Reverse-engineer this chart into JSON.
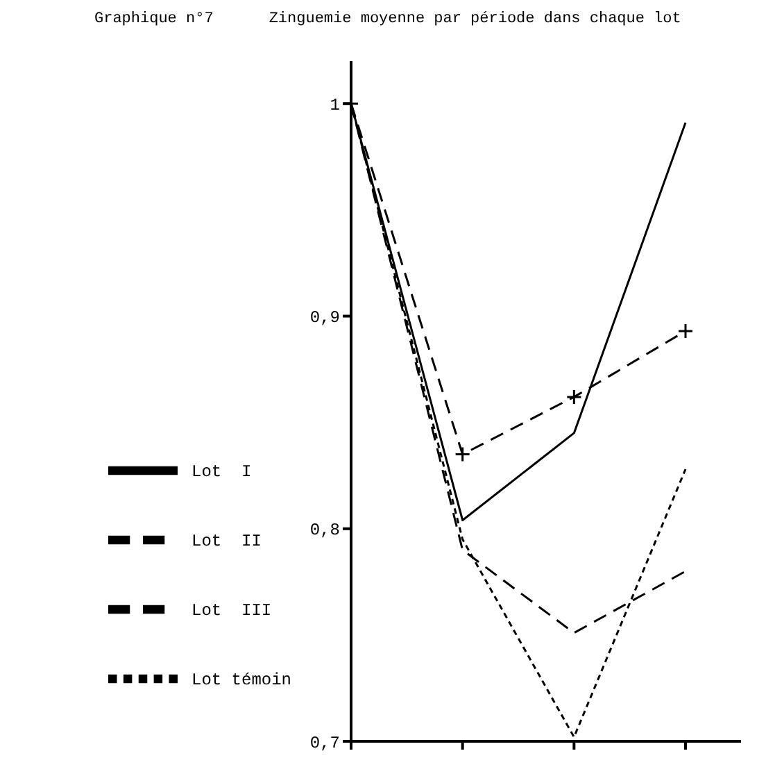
{
  "chart_data": {
    "type": "line",
    "title": "Graphique n°7",
    "subtitle": "Zinguemie moyenne par période dans chaque lot",
    "categories": [
      null,
      null,
      null,
      null
    ],
    "ylim": [
      0.7,
      1.02
    ],
    "yticks": [
      {
        "value": 0.7,
        "label": "0,7"
      },
      {
        "value": 0.8,
        "label": "0,8"
      },
      {
        "value": 0.9,
        "label": "0,9"
      },
      {
        "value": 1,
        "label": "1"
      }
    ],
    "tick_labels": "y",
    "grid": false,
    "legend": "bottom left",
    "marker": "none",
    "series": [
      {
        "name": "Lot témoin",
        "color": "#000000",
        "line_style": "dotted",
        "values": [
          1,
          0.795,
          0.702,
          0.828
        ]
      },
      {
        "name": "Lot  I",
        "color": "#000000",
        "line_style": "solid",
        "values": [
          1,
          0.804,
          0.845,
          0.991
        ]
      },
      {
        "name": "Lot  II",
        "color": "#000000",
        "line_style": "dashed",
        "marker": "cross",
        "values": [
          1,
          0.835,
          0.862,
          0.893
        ]
      },
      {
        "name": "Lot  III",
        "color": "#000000",
        "line_style": "dashed",
        "values": [
          1,
          0.79,
          0.751,
          0.78
        ]
      }
    ]
  }
}
